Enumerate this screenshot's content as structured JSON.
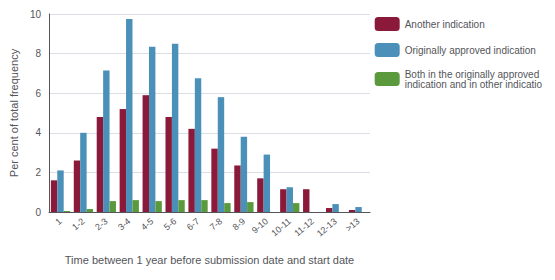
{
  "chart_data": {
    "type": "bar",
    "categories": [
      "1",
      "1-2",
      "2-3",
      "3-4",
      "4-5",
      "5-6",
      "6-7",
      "7-8",
      "8-9",
      "9-10",
      "10-11",
      "11-12",
      "12-13",
      ">13"
    ],
    "series": [
      {
        "name": "Another indication",
        "color": "#8B1A3A",
        "values": [
          1.6,
          2.6,
          4.8,
          5.2,
          5.9,
          4.8,
          4.2,
          3.2,
          2.35,
          1.7,
          1.15,
          1.15,
          0.2,
          0.1
        ]
      },
      {
        "name": "Originally approved indication",
        "color": "#4A90B8",
        "values": [
          2.1,
          4.0,
          7.15,
          9.75,
          8.35,
          8.5,
          6.75,
          5.8,
          3.8,
          2.9,
          1.25,
          0.0,
          0.4,
          0.25
        ]
      },
      {
        "name": "Both in the originally approved\nindication and in other indicatio",
        "color": "#5A9A3C",
        "values": [
          0.05,
          0.15,
          0.55,
          0.6,
          0.55,
          0.6,
          0.6,
          0.45,
          0.5,
          0.0,
          0.45,
          0.0,
          0.0,
          0.0
        ]
      }
    ],
    "xlabel": "Time between 1 year before submission date and start date",
    "ylabel": "Per cent of total frequency",
    "ylim": [
      0,
      10
    ],
    "yticks": [
      0,
      2,
      4,
      6,
      8,
      10
    ],
    "grid": true,
    "legend": "right"
  }
}
